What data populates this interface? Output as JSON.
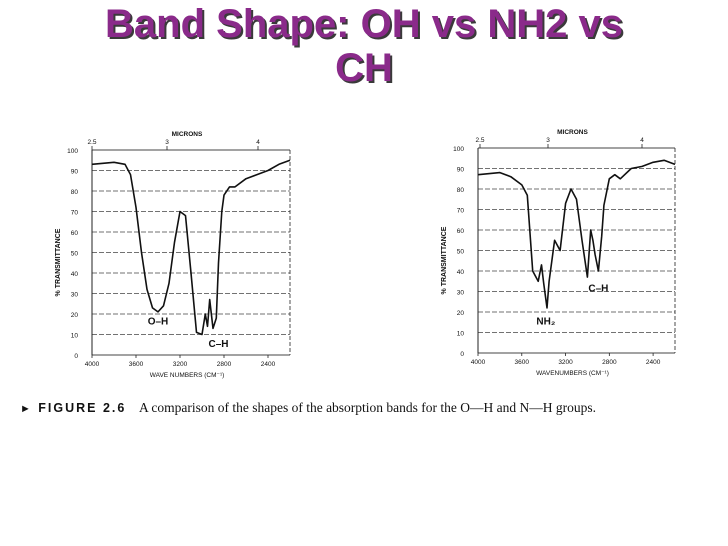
{
  "slide": {
    "title_line1": "Band Shape: OH vs NH2 vs",
    "title_line2": "CH"
  },
  "caption": {
    "arrow": "►",
    "figure_label": "FIGURE 2.6",
    "text": "A comparison of the shapes of the absorption bands for the O—H and N—H groups."
  },
  "colors": {
    "title": "#8a2a8a",
    "title_shadow": "#3a3a3a",
    "ink": "#111111"
  },
  "chart_data": [
    {
      "type": "line",
      "ylabel": "% TRANSMITTANCE",
      "xlabel": "WAVE NUMBERS (CM⁻¹)",
      "top_axis_label": "MICRONS",
      "top_ticks": [
        "2.5",
        "3",
        "4"
      ],
      "x_tick_labels": [
        "4000",
        "3600",
        "3200",
        "2800",
        "2400"
      ],
      "y_tick_labels": [
        "0",
        "10",
        "20",
        "30",
        "40",
        "50",
        "60",
        "70",
        "80",
        "90",
        "100"
      ],
      "xlim": [
        4000,
        2200
      ],
      "ylim": [
        0,
        100
      ],
      "annotations": [
        {
          "text": "O–H",
          "x": 3400,
          "y": 15
        },
        {
          "text": "C–H",
          "x": 2850,
          "y": 4
        }
      ],
      "x": [
        4000,
        3800,
        3700,
        3650,
        3600,
        3550,
        3500,
        3450,
        3400,
        3350,
        3300,
        3250,
        3200,
        3150,
        3100,
        3050,
        3000,
        2970,
        2950,
        2930,
        2900,
        2870,
        2850,
        2820,
        2800,
        2750,
        2700,
        2600,
        2500,
        2400,
        2300,
        2200
      ],
      "values": [
        93,
        94,
        93,
        88,
        72,
        50,
        32,
        23,
        21,
        24,
        35,
        55,
        70,
        68,
        40,
        11,
        10,
        20,
        14,
        27,
        13,
        18,
        45,
        70,
        78,
        82,
        82,
        86,
        88,
        90,
        93,
        95
      ]
    },
    {
      "type": "line",
      "ylabel": "% TRANSMITTANCE",
      "xlabel": "WAVENUMBERS (CM⁻¹)",
      "top_axis_label": "MICRONS",
      "top_ticks": [
        "2.5",
        "3",
        "4"
      ],
      "x_tick_labels": [
        "4000",
        "3600",
        "3200",
        "2800",
        "2400"
      ],
      "y_tick_labels": [
        "0",
        "10",
        "20",
        "30",
        "40",
        "50",
        "60",
        "70",
        "80",
        "90",
        "100"
      ],
      "xlim": [
        4000,
        2200
      ],
      "ylim": [
        0,
        100
      ],
      "annotations": [
        {
          "text": "NH₂",
          "x": 3380,
          "y": 14
        },
        {
          "text": "C–H",
          "x": 2900,
          "y": 30
        }
      ],
      "x": [
        4000,
        3800,
        3700,
        3600,
        3550,
        3500,
        3450,
        3420,
        3400,
        3370,
        3350,
        3300,
        3250,
        3200,
        3150,
        3100,
        3050,
        3000,
        2970,
        2950,
        2930,
        2900,
        2870,
        2850,
        2800,
        2750,
        2700,
        2600,
        2500,
        2400,
        2300,
        2200
      ],
      "values": [
        87,
        88,
        86,
        82,
        77,
        40,
        35,
        43,
        34,
        22,
        35,
        55,
        50,
        73,
        80,
        75,
        55,
        37,
        60,
        55,
        48,
        40,
        57,
        72,
        85,
        87,
        85,
        90,
        91,
        93,
        94,
        92
      ]
    }
  ]
}
